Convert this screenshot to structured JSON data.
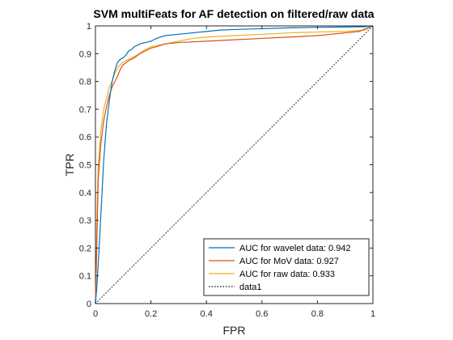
{
  "chart_data": {
    "type": "line",
    "title": "SVM multiFeats for AF detection on filtered/raw data",
    "xlabel": "FPR",
    "ylabel": "TPR",
    "xlim": [
      0,
      1
    ],
    "ylim": [
      0,
      1
    ],
    "xticks": [
      "0",
      "0.2",
      "0.4",
      "0.6",
      "0.8",
      "1"
    ],
    "yticks": [
      "0",
      "0.1",
      "0.2",
      "0.3",
      "0.4",
      "0.5",
      "0.6",
      "0.7",
      "0.8",
      "0.9",
      "1"
    ],
    "grid": false,
    "legend_position": "bottom-right",
    "series": [
      {
        "name": "AUC for wavelet data: 0.942",
        "color": "#0072BD",
        "style": "solid",
        "points": [
          [
            0,
            0
          ],
          [
            0.005,
            0.06
          ],
          [
            0.01,
            0.14
          ],
          [
            0.02,
            0.33
          ],
          [
            0.03,
            0.52
          ],
          [
            0.04,
            0.65
          ],
          [
            0.05,
            0.73
          ],
          [
            0.06,
            0.8
          ],
          [
            0.07,
            0.84
          ],
          [
            0.08,
            0.87
          ],
          [
            0.09,
            0.88
          ],
          [
            0.1,
            0.885
          ],
          [
            0.11,
            0.895
          ],
          [
            0.12,
            0.91
          ],
          [
            0.13,
            0.915
          ],
          [
            0.14,
            0.925
          ],
          [
            0.16,
            0.935
          ],
          [
            0.18,
            0.94
          ],
          [
            0.2,
            0.945
          ],
          [
            0.22,
            0.955
          ],
          [
            0.25,
            0.965
          ],
          [
            0.3,
            0.97
          ],
          [
            0.35,
            0.975
          ],
          [
            0.4,
            0.98
          ],
          [
            0.45,
            0.985
          ],
          [
            0.5,
            0.987
          ],
          [
            0.6,
            0.99
          ],
          [
            0.7,
            0.993
          ],
          [
            0.8,
            0.995
          ],
          [
            0.9,
            0.996
          ],
          [
            0.97,
            0.997
          ],
          [
            1.0,
            1.0
          ]
        ]
      },
      {
        "name": "AUC for MoV data: 0.927",
        "color": "#D95319",
        "style": "solid",
        "points": [
          [
            0,
            0
          ],
          [
            0.003,
            0.12
          ],
          [
            0.006,
            0.27
          ],
          [
            0.01,
            0.45
          ],
          [
            0.02,
            0.58
          ],
          [
            0.03,
            0.66
          ],
          [
            0.04,
            0.71
          ],
          [
            0.05,
            0.75
          ],
          [
            0.06,
            0.78
          ],
          [
            0.07,
            0.8
          ],
          [
            0.08,
            0.82
          ],
          [
            0.09,
            0.845
          ],
          [
            0.1,
            0.86
          ],
          [
            0.12,
            0.875
          ],
          [
            0.14,
            0.885
          ],
          [
            0.16,
            0.9
          ],
          [
            0.18,
            0.91
          ],
          [
            0.2,
            0.92
          ],
          [
            0.22,
            0.925
          ],
          [
            0.25,
            0.935
          ],
          [
            0.3,
            0.94
          ],
          [
            0.4,
            0.945
          ],
          [
            0.5,
            0.95
          ],
          [
            0.6,
            0.955
          ],
          [
            0.7,
            0.96
          ],
          [
            0.8,
            0.965
          ],
          [
            0.9,
            0.975
          ],
          [
            0.95,
            0.98
          ],
          [
            1.0,
            1.0
          ]
        ]
      },
      {
        "name": "AUC for raw data: 0.933",
        "color": "#EDB120",
        "style": "solid",
        "points": [
          [
            0,
            0
          ],
          [
            0.003,
            0.15
          ],
          [
            0.006,
            0.33
          ],
          [
            0.01,
            0.5
          ],
          [
            0.02,
            0.63
          ],
          [
            0.03,
            0.7
          ],
          [
            0.04,
            0.74
          ],
          [
            0.05,
            0.78
          ],
          [
            0.06,
            0.8
          ],
          [
            0.07,
            0.83
          ],
          [
            0.08,
            0.85
          ],
          [
            0.09,
            0.86
          ],
          [
            0.1,
            0.87
          ],
          [
            0.12,
            0.88
          ],
          [
            0.15,
            0.895
          ],
          [
            0.18,
            0.915
          ],
          [
            0.2,
            0.925
          ],
          [
            0.25,
            0.935
          ],
          [
            0.3,
            0.945
          ],
          [
            0.35,
            0.955
          ],
          [
            0.4,
            0.96
          ],
          [
            0.5,
            0.965
          ],
          [
            0.6,
            0.97
          ],
          [
            0.7,
            0.975
          ],
          [
            0.8,
            0.978
          ],
          [
            0.9,
            0.98
          ],
          [
            0.97,
            0.985
          ],
          [
            1.0,
            1.0
          ]
        ]
      },
      {
        "name": "data1",
        "color": "#000000",
        "style": "dotted",
        "points": [
          [
            0,
            0
          ],
          [
            1,
            1
          ]
        ]
      }
    ]
  }
}
